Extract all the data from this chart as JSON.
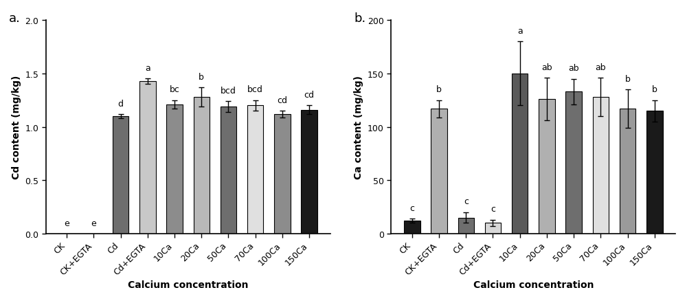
{
  "panel_a": {
    "title": "a.",
    "ylabel": "Cd content (mg/kg)",
    "xlabel": "Calcium concentration",
    "categories": [
      "CK",
      "CK+EGTA",
      "Cd",
      "Cd+EGTA",
      "10Ca",
      "20Ca",
      "50Ca",
      "70Ca",
      "100Ca",
      "150Ca"
    ],
    "values": [
      0.0,
      0.0,
      1.1,
      1.43,
      1.21,
      1.28,
      1.19,
      1.2,
      1.12,
      1.16
    ],
    "errors": [
      0.0,
      0.0,
      0.02,
      0.025,
      0.04,
      0.09,
      0.05,
      0.05,
      0.03,
      0.04
    ],
    "colors": [
      "#6e6e6e",
      "#8c8c8c",
      "#6e6e6e",
      "#c8c8c8",
      "#8c8c8c",
      "#b8b8b8",
      "#6e6e6e",
      "#e0e0e0",
      "#8c8c8c",
      "#1a1a1a"
    ],
    "letters": [
      "e",
      "e",
      "d",
      "a",
      "bc",
      "b",
      "bcd",
      "bcd",
      "cd",
      "cd"
    ],
    "ylim": [
      0,
      2.0
    ],
    "yticks": [
      0.0,
      0.5,
      1.0,
      1.5,
      2.0
    ]
  },
  "panel_b": {
    "title": "b.",
    "ylabel": "Ca content (mg/kg)",
    "xlabel": "Calcium concentration",
    "categories": [
      "CK",
      "CK+EGTA",
      "Cd",
      "Cd+EGTA",
      "10Ca",
      "20Ca",
      "50Ca",
      "70Ca",
      "100Ca",
      "150Ca"
    ],
    "values": [
      12.0,
      117.0,
      15.0,
      10.0,
      150.0,
      126.0,
      133.0,
      128.0,
      117.0,
      115.0
    ],
    "errors": [
      2.0,
      8.0,
      5.0,
      3.0,
      30.0,
      20.0,
      12.0,
      18.0,
      18.0,
      10.0
    ],
    "colors": [
      "#1a1a1a",
      "#b0b0b0",
      "#6e6e6e",
      "#d8d8d8",
      "#5a5a5a",
      "#b0b0b0",
      "#6e6e6e",
      "#e0e0e0",
      "#9a9a9a",
      "#1a1a1a"
    ],
    "letters": [
      "c",
      "b",
      "c",
      "c",
      "a",
      "ab",
      "ab",
      "ab",
      "b",
      "b"
    ],
    "ylim": [
      0,
      200
    ],
    "yticks": [
      0,
      50,
      100,
      150,
      200
    ]
  },
  "figsize": [
    10.0,
    4.39
  ],
  "dpi": 100
}
